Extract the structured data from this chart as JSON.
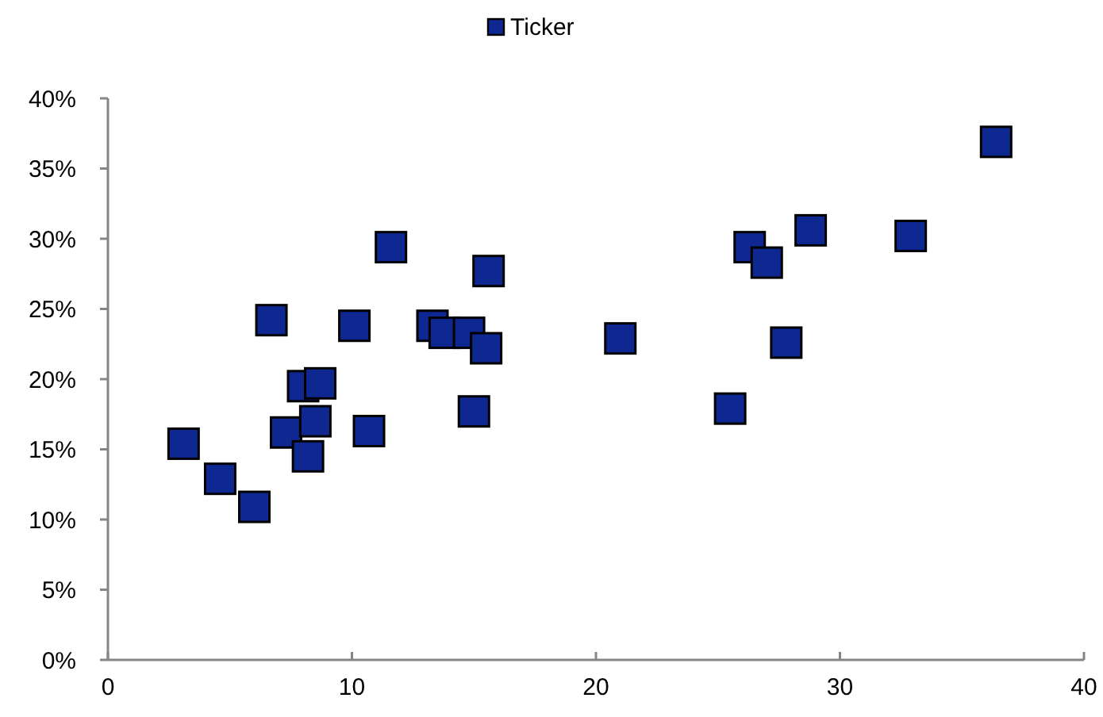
{
  "chart_data": {
    "type": "scatter",
    "legend": "top",
    "marker": "square",
    "grid": false,
    "xlim": [
      0,
      40
    ],
    "xticks": [
      0,
      10,
      20,
      30,
      40
    ],
    "ylim": [
      0,
      40
    ],
    "yticks": [
      {
        "value": 0,
        "label": "0%"
      },
      {
        "value": 5,
        "label": "5%"
      },
      {
        "value": 10,
        "label": "10%"
      },
      {
        "value": 15,
        "label": "15%"
      },
      {
        "value": 20,
        "label": "20%"
      },
      {
        "value": 25,
        "label": "25%"
      },
      {
        "value": 30,
        "label": "30%"
      },
      {
        "value": 35,
        "label": "35%"
      },
      {
        "value": 40,
        "label": "40%"
      }
    ],
    "series": [
      {
        "name": "Ticker",
        "color": "#0f2891",
        "x": [
          3.1,
          4.6,
          6.0,
          6.7,
          7.3,
          8.0,
          8.2,
          8.7,
          8.5,
          10.1,
          10.7,
          11.6,
          13.3,
          13.8,
          14.8,
          15.5,
          15.0,
          15.6,
          21.0,
          25.5,
          26.3,
          27.0,
          27.8,
          28.8,
          32.9,
          36.4
        ],
        "values": [
          15.4,
          12.9,
          10.9,
          24.2,
          16.2,
          19.5,
          14.5,
          19.7,
          17.0,
          23.8,
          16.3,
          29.4,
          23.8,
          23.3,
          23.3,
          22.2,
          17.7,
          27.7,
          22.9,
          17.9,
          29.4,
          28.3,
          22.6,
          30.6,
          30.2,
          36.9
        ]
      }
    ]
  }
}
